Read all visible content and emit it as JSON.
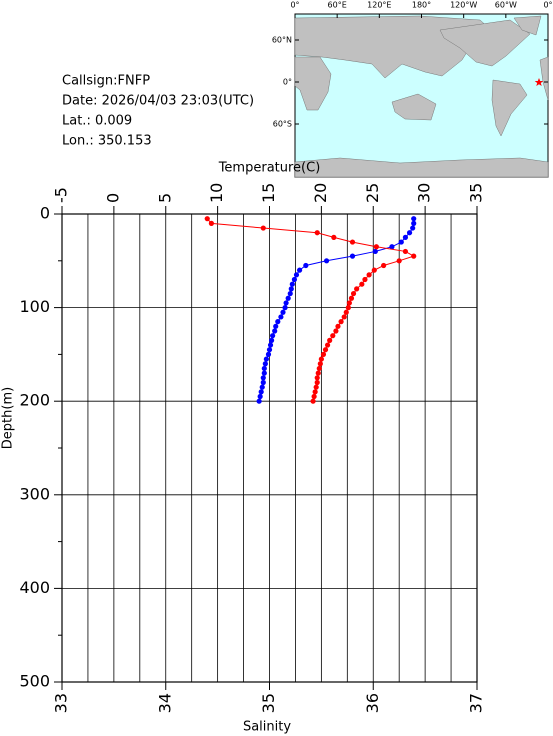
{
  "chart_data": {
    "type": "profile",
    "x_label": "Salinity",
    "x2_label": "Temperature(C)",
    "y_label": "Depth(m)",
    "info": [
      "Callsign:FNFP",
      "Date:  2026/04/03 23:03(UTC)",
      "Lat.:    0.009",
      "Lon.:  350.153"
    ],
    "map_xticks": [
      "0°",
      "60°E",
      "120°E",
      "180°",
      "120°W",
      "60°W",
      "0°"
    ],
    "map_yticks": [
      "60°N",
      "0°",
      "60°S"
    ],
    "xlim": [
      33,
      37
    ],
    "xticks": [
      33,
      34,
      35,
      36,
      37
    ],
    "xgrid": [
      33.25,
      33.5,
      33.75,
      34,
      34.25,
      34.5,
      34.75,
      35,
      35.25,
      35.5,
      35.75,
      36,
      36.25,
      36.5,
      36.75
    ],
    "x2lim": [
      -5,
      35
    ],
    "x2ticks": [
      -5,
      0,
      5,
      10,
      15,
      20,
      25,
      30,
      35
    ],
    "ylim": [
      0,
      500
    ],
    "yticks": [
      0,
      100,
      200,
      300,
      400,
      500
    ],
    "yminorticks": [
      50,
      150,
      250,
      350,
      450
    ],
    "y_inverted": true,
    "depth": [
      5,
      10,
      15,
      20,
      25,
      30,
      35,
      40,
      45,
      50,
      55,
      60,
      65,
      70,
      75,
      80,
      85,
      90,
      95,
      100,
      105,
      110,
      115,
      120,
      125,
      130,
      135,
      140,
      145,
      150,
      155,
      160,
      165,
      170,
      175,
      180,
      185,
      190,
      195,
      200
    ],
    "series": [
      {
        "name": "Temperature",
        "axis": "x2",
        "color": "#0000ff",
        "values": [
          28.9,
          28.9,
          28.8,
          28.5,
          28.1,
          27.7,
          26.8,
          25.2,
          23.0,
          20.5,
          18.5,
          17.9,
          17.6,
          17.4,
          17.2,
          17.1,
          17.0,
          16.8,
          16.6,
          16.5,
          16.3,
          16.1,
          15.8,
          15.6,
          15.5,
          15.3,
          15.2,
          15.1,
          15.0,
          14.9,
          14.7,
          14.6,
          14.5,
          14.5,
          14.4,
          14.4,
          14.3,
          14.2,
          14.1,
          14.0
        ]
      },
      {
        "name": "Salinity",
        "axis": "x",
        "color": "#ff0000",
        "values": [
          34.4,
          34.44,
          34.94,
          35.46,
          35.62,
          35.8,
          36.03,
          36.31,
          36.39,
          36.25,
          36.1,
          36.01,
          35.96,
          35.92,
          35.89,
          35.84,
          35.81,
          35.79,
          35.77,
          35.76,
          35.74,
          35.72,
          35.69,
          35.66,
          35.64,
          35.61,
          35.58,
          35.56,
          35.54,
          35.52,
          35.5,
          35.49,
          35.48,
          35.47,
          35.46,
          35.46,
          35.45,
          35.44,
          35.43,
          35.42
        ]
      }
    ]
  }
}
